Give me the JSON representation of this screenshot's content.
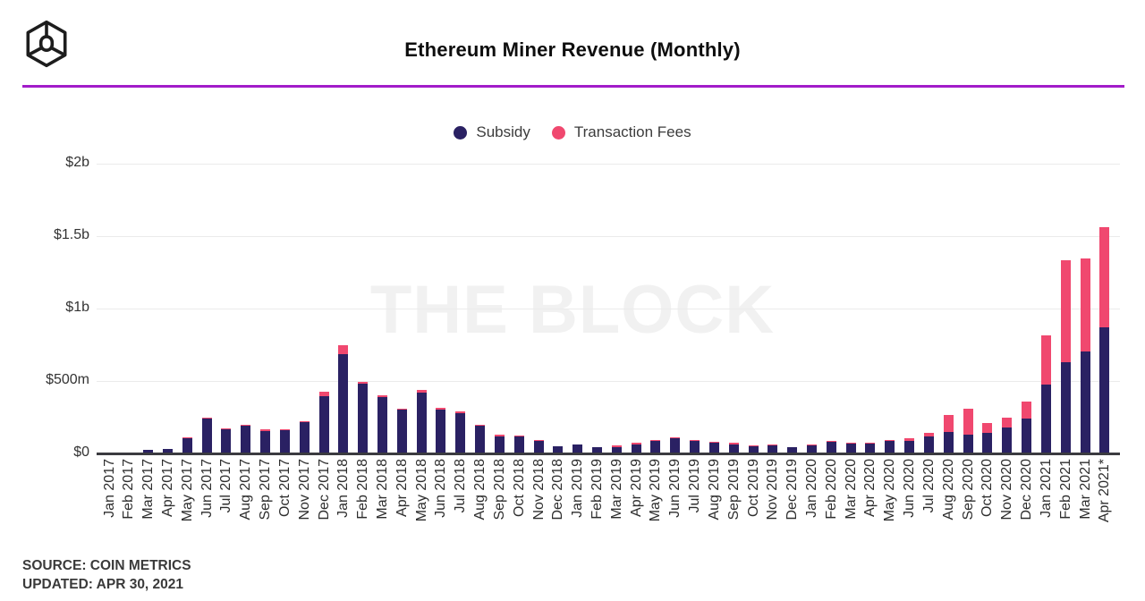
{
  "header": {
    "title": "Ethereum Miner Revenue (Monthly)"
  },
  "legend": {
    "items": [
      {
        "label": "Subsidy",
        "color": "#2A2163"
      },
      {
        "label": "Transaction Fees",
        "color": "#F0486F"
      }
    ]
  },
  "watermark": "THE BLOCK",
  "footer": {
    "source_line": "SOURCE: COIN METRICS",
    "updated_line": "UPDATED: APR 30, 2021"
  },
  "chart_data": {
    "type": "bar",
    "stacked": true,
    "title": "Ethereum Miner Revenue (Monthly)",
    "unit": "USD millions",
    "ylim": [
      0,
      2000
    ],
    "grid": "horizontal",
    "legend_position": "top-center",
    "yticks": [
      {
        "value": 0,
        "label": "$0"
      },
      {
        "value": 500,
        "label": "$500m"
      },
      {
        "value": 1000,
        "label": "$1b"
      },
      {
        "value": 1500,
        "label": "$1.5b"
      },
      {
        "value": 2000,
        "label": "$2b"
      }
    ],
    "categories": [
      "Jan 2017",
      "Feb 2017",
      "Mar 2017",
      "Apr 2017",
      "May 2017",
      "Jun 2017",
      "Jul 2017",
      "Aug 2017",
      "Sep 2017",
      "Oct 2017",
      "Nov 2017",
      "Dec 2017",
      "Jan 2018",
      "Feb 2018",
      "Mar 2018",
      "Apr 2018",
      "May 2018",
      "Jun 2018",
      "Jul 2018",
      "Aug 2018",
      "Sep 2018",
      "Oct 2018",
      "Nov 2018",
      "Dec 2018",
      "Jan 2019",
      "Feb 2019",
      "Mar 2019",
      "Apr 2019",
      "May 2019",
      "Jun 2019",
      "Jul 2019",
      "Aug 2019",
      "Sep 2019",
      "Oct 2019",
      "Nov 2019",
      "Dec 2019",
      "Jan 2020",
      "Feb 2020",
      "Mar 2020",
      "Apr 2020",
      "May 2020",
      "Jun 2020",
      "Jul 2020",
      "Aug 2020",
      "Sep 2020",
      "Oct 2020",
      "Nov 2020",
      "Dec 2020",
      "Jan 2021",
      "Feb 2021",
      "Mar 2021",
      "Apr 2021*"
    ],
    "series": [
      {
        "name": "Subsidy",
        "color": "#2A2163",
        "values": [
          8,
          8,
          22,
          32,
          105,
          240,
          168,
          192,
          154,
          160,
          215,
          396,
          688,
          483,
          386,
          305,
          417,
          305,
          280,
          190,
          117,
          117,
          88,
          52,
          62,
          44,
          45,
          60,
          88,
          105,
          87,
          72,
          59,
          52,
          54,
          42,
          56,
          83,
          68,
          67,
          84,
          89,
          119,
          150,
          132,
          139,
          180,
          241,
          475,
          628,
          704,
          870
        ]
      },
      {
        "name": "Transaction Fees",
        "color": "#F0486F",
        "values": [
          1,
          1,
          2,
          3,
          5,
          8,
          5,
          6,
          13,
          4,
          6,
          29,
          62,
          15,
          14,
          5,
          19,
          12,
          14,
          6,
          12,
          4,
          4,
          3,
          3,
          2,
          15,
          12,
          5,
          8,
          8,
          5,
          10,
          4,
          8,
          3,
          4,
          5,
          5,
          4,
          8,
          17,
          23,
          115,
          180,
          65,
          67,
          116,
          337,
          704,
          642,
          690
        ]
      }
    ]
  }
}
